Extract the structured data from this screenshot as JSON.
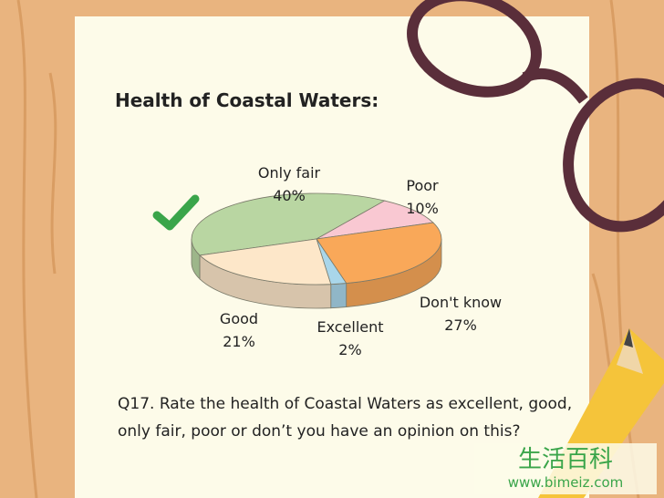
{
  "chart_data": {
    "type": "pie",
    "title": "Health of Coastal Waters:",
    "categories": [
      "Only fair",
      "Poor",
      "Don't know",
      "Excellent",
      "Good"
    ],
    "values": [
      40,
      10,
      27,
      2,
      21
    ],
    "value_labels": [
      "40%",
      "10%",
      "27%",
      "2%",
      "21%"
    ],
    "colors": [
      "#b9d6a2",
      "#f9c8d2",
      "#f9a859",
      "#a9d6ea",
      "#fde7c9"
    ],
    "question": "Q17. Rate the health of Coastal Waters as excellent, good, only fair, poor or don’t you have an opinion on this?",
    "watermark": [
      "生活百科",
      "www.bimeiz.com"
    ]
  }
}
